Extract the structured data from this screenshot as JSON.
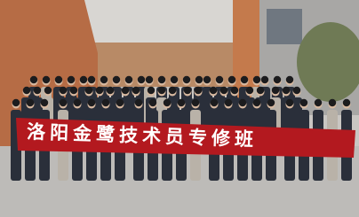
{
  "banner": {
    "text": "洛阳金鹭技术员专修班"
  }
}
